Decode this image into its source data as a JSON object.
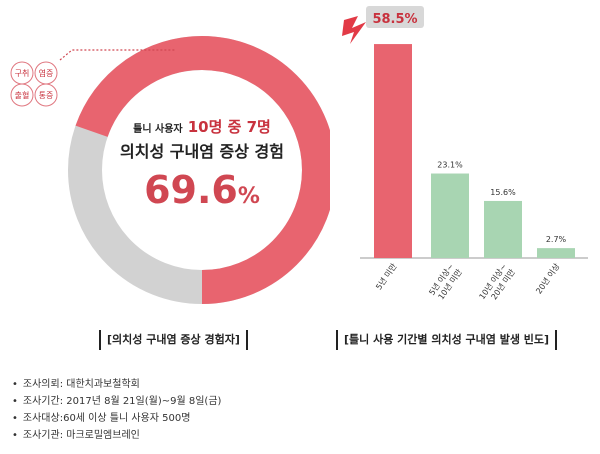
{
  "chart_data": [
    {
      "type": "pie",
      "variant": "donut",
      "value_percent": 69.6,
      "remainder_percent": 30.4,
      "headline_small": "틀니 사용자",
      "headline_red": "10명 중 7명",
      "headline_main": "의치성 구내염 증상 경험",
      "big_value": "69.6",
      "big_unit": "%",
      "symptoms": [
        "구취",
        "염증",
        "출혈",
        "통증"
      ],
      "caption": "[의치성 구내염 증상 경험자]",
      "colors": {
        "filled": "#e8646f",
        "remainder": "#d2d2d2",
        "accent": "#c8323e"
      }
    },
    {
      "type": "bar",
      "categories": [
        "5년 미만",
        "5년 이상~\n10년 미만",
        "10년 이상~\n20년 미만",
        "20년 이상"
      ],
      "values": [
        58.5,
        23.1,
        15.6,
        2.7
      ],
      "value_labels": [
        "58.5%",
        "23.1%",
        "15.6%",
        "2.7%"
      ],
      "ylim": [
        0,
        60
      ],
      "caption": "[틀니 사용 기간별 의치성 구내염 발생 빈도]",
      "colors": {
        "highlight": "#e8646f",
        "normal": "#a8d5b2",
        "label_box": "#d8d8d8"
      }
    }
  ],
  "notes": [
    "조사의뢰: 대한치과보철학회",
    "조사기간: 2017년 8월 21일(월)~9월 8일(금)",
    "조사대상:60세 이상 틀니 사용자 500명",
    "조사기관: 마크로밀엠브레인"
  ]
}
